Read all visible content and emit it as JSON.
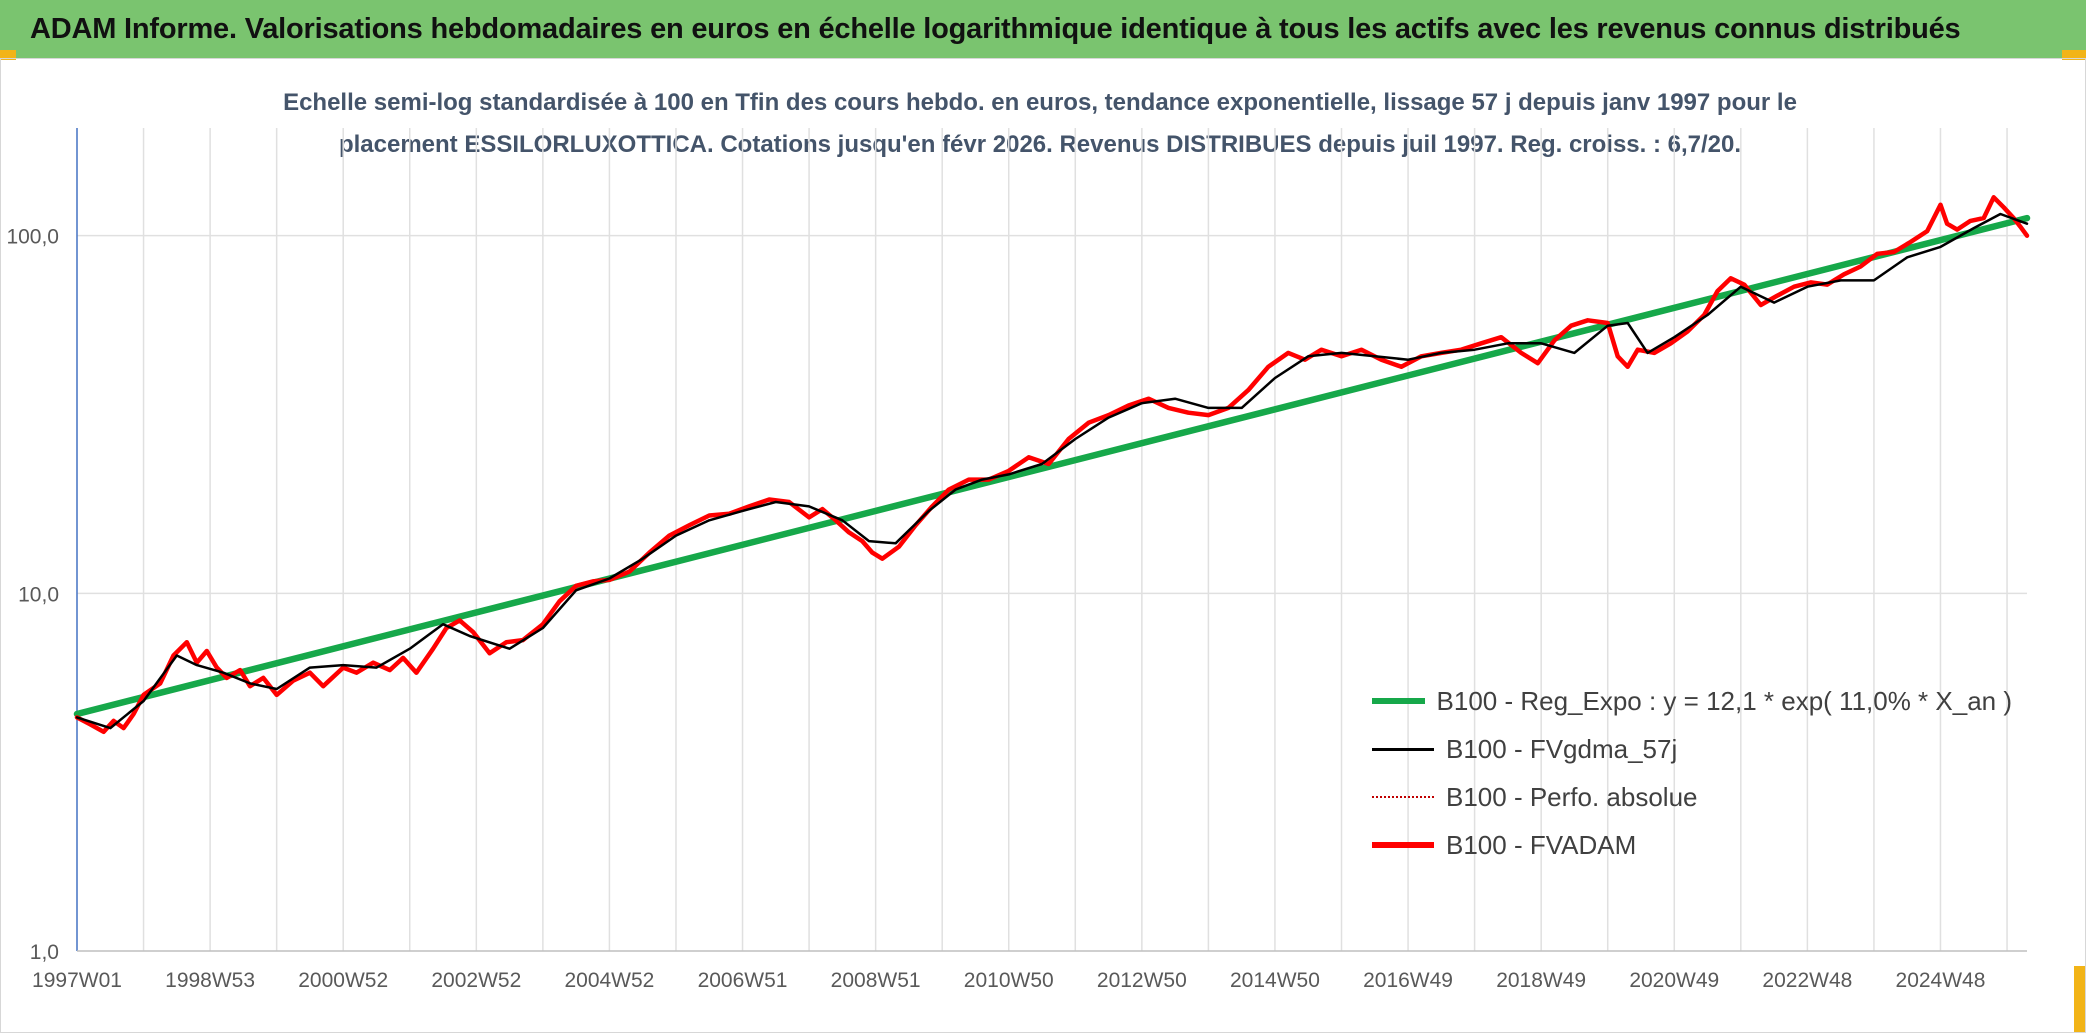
{
  "banner": {
    "title": "ADAM Informe. Valorisations hebdomadaires en euros en échelle logarithmique identique à tous les actifs avec les revenus connus distribués"
  },
  "colors": {
    "banner_bg": "#7ac46f",
    "corner_accent": "#f2b417",
    "trend": "#16a84a",
    "smoothed": "#000000",
    "perf": "#c00000",
    "fvadam": "#ff0000",
    "axis": "#4472c4",
    "grid": "#e0e0e0"
  },
  "chart_data": {
    "type": "line",
    "title_line1": "Echelle semi-log standardisée à 100 en Tfin des cours hebdo. en euros, tendance exponentielle, lissage 57 j depuis janv 1997 pour le",
    "title_line2": "placement ESSILORLUXOTTICA. Cotations jusqu'en févr 2026. Revenus DISTRIBUES depuis juil 1997. Reg. croiss. : 6,7/20.",
    "y_scale": "log",
    "ylim": [
      1,
      200
    ],
    "xlim": [
      1997.0,
      2026.3
    ],
    "y_ticks": [
      1,
      10,
      100
    ],
    "y_tick_labels": [
      "1,0",
      "10,0",
      "100,0"
    ],
    "x_tick_labels": [
      "1997W01",
      "1998W53",
      "2000W52",
      "2002W52",
      "2004W52",
      "2006W51",
      "2008W51",
      "2010W50",
      "2012W50",
      "2014W50",
      "2016W49",
      "2018W49",
      "2020W49",
      "2022W48",
      "2024W48"
    ],
    "x_tick_positions": [
      1997.0,
      1999.0,
      2001.0,
      2003.0,
      2005.0,
      2007.0,
      2009.0,
      2011.0,
      2013.0,
      2015.0,
      2017.0,
      2019.0,
      2021.0,
      2023.0,
      2025.0
    ],
    "grid": true,
    "legend_position": "bottom-right",
    "series": [
      {
        "name": "B100 - Reg_Expo : y = 12,1 * exp( 11,0% *  X_an )",
        "style": "trend",
        "x": [
          1997.0,
          2026.3
        ],
        "values": [
          4.6,
          112
        ]
      },
      {
        "name": "B100 - FVgdma_57j",
        "style": "smoothed",
        "x": [
          1997.0,
          1997.5,
          1998.0,
          1998.5,
          1998.8,
          1999.2,
          1999.6,
          2000.0,
          2000.5,
          2001.0,
          2001.5,
          2002.0,
          2002.5,
          2002.9,
          2003.5,
          2004.0,
          2004.5,
          2005.0,
          2005.5,
          2006.0,
          2006.5,
          2007.0,
          2007.5,
          2008.0,
          2008.5,
          2008.9,
          2009.3,
          2009.8,
          2010.2,
          2010.6,
          2011.0,
          2011.5,
          2012.0,
          2012.5,
          2013.0,
          2013.5,
          2014.0,
          2014.5,
          2015.0,
          2015.5,
          2016.0,
          2016.5,
          2017.0,
          2017.5,
          2018.0,
          2018.5,
          2019.0,
          2019.5,
          2020.0,
          2020.3,
          2020.6,
          2021.0,
          2021.5,
          2022.0,
          2022.5,
          2023.0,
          2023.5,
          2024.0,
          2024.5,
          2025.0,
          2025.5,
          2025.9,
          2026.3
        ],
        "values": [
          4.5,
          4.2,
          5.0,
          6.7,
          6.3,
          6.0,
          5.6,
          5.4,
          6.2,
          6.3,
          6.2,
          7.0,
          8.2,
          7.6,
          7.0,
          8.0,
          10.2,
          11.0,
          12.5,
          14.5,
          16.0,
          17.0,
          18.0,
          17.5,
          16.0,
          14.0,
          13.8,
          17.0,
          19.5,
          20.8,
          21.5,
          23.0,
          27.0,
          31.0,
          34.0,
          35.0,
          33.0,
          33.0,
          40.0,
          46.0,
          47.0,
          46.0,
          45.0,
          47.0,
          48.0,
          50.0,
          50.0,
          47.0,
          56.0,
          57.0,
          47.0,
          52.0,
          60.0,
          72.0,
          65.0,
          72.0,
          75.0,
          75.0,
          87.0,
          93.0,
          105.0,
          115.0,
          108.0
        ]
      },
      {
        "name": "B100 - Perfo. absolue",
        "style": "perf",
        "x": [],
        "values": []
      },
      {
        "name": "B100 - FVADAM",
        "style": "fvadam",
        "x": [
          1997.0,
          1997.2,
          1997.4,
          1997.55,
          1997.7,
          1997.85,
          1998.0,
          1998.25,
          1998.45,
          1998.65,
          1998.8,
          1998.95,
          1999.1,
          1999.25,
          1999.45,
          1999.6,
          1999.8,
          2000.0,
          2000.25,
          2000.5,
          2000.7,
          2001.0,
          2001.2,
          2001.45,
          2001.7,
          2001.9,
          2002.1,
          2002.35,
          2002.55,
          2002.75,
          2002.95,
          2003.2,
          2003.45,
          2003.7,
          2004.0,
          2004.25,
          2004.5,
          2004.75,
          2005.0,
          2005.3,
          2005.6,
          2005.9,
          2006.2,
          2006.5,
          2006.8,
          2007.1,
          2007.4,
          2007.7,
          2008.0,
          2008.2,
          2008.4,
          2008.6,
          2008.8,
          2008.95,
          2009.1,
          2009.35,
          2009.6,
          2009.85,
          2010.1,
          2010.4,
          2010.7,
          2011.0,
          2011.3,
          2011.6,
          2011.9,
          2012.2,
          2012.5,
          2012.8,
          2013.1,
          2013.4,
          2013.7,
          2014.0,
          2014.3,
          2014.6,
          2014.9,
          2015.2,
          2015.45,
          2015.7,
          2016.0,
          2016.3,
          2016.6,
          2016.9,
          2017.2,
          2017.5,
          2017.8,
          2018.1,
          2018.4,
          2018.7,
          2018.95,
          2019.2,
          2019.45,
          2019.7,
          2020.0,
          2020.15,
          2020.3,
          2020.45,
          2020.7,
          2020.95,
          2021.2,
          2021.45,
          2021.65,
          2021.85,
          2022.05,
          2022.3,
          2022.55,
          2022.8,
          2023.05,
          2023.3,
          2023.55,
          2023.8,
          2024.05,
          2024.3,
          2024.55,
          2024.8,
          2025.0,
          2025.1,
          2025.25,
          2025.45,
          2025.65,
          2025.8,
          2025.95,
          2026.1,
          2026.2,
          2026.3
        ],
        "values": [
          4.5,
          4.3,
          4.1,
          4.4,
          4.2,
          4.6,
          5.2,
          5.6,
          6.7,
          7.3,
          6.4,
          6.9,
          6.2,
          5.8,
          6.1,
          5.5,
          5.8,
          5.2,
          5.7,
          6.0,
          5.5,
          6.2,
          6.0,
          6.4,
          6.1,
          6.6,
          6.0,
          7.0,
          8.0,
          8.4,
          7.8,
          6.8,
          7.3,
          7.4,
          8.2,
          9.5,
          10.5,
          10.8,
          10.9,
          11.5,
          13.0,
          14.5,
          15.5,
          16.5,
          16.7,
          17.5,
          18.3,
          18.0,
          16.3,
          17.2,
          16.0,
          14.8,
          14.0,
          13.0,
          12.5,
          13.5,
          15.5,
          17.5,
          19.5,
          20.8,
          20.8,
          22.0,
          24.0,
          23.0,
          27.0,
          30.0,
          31.5,
          33.5,
          35.0,
          33.0,
          32.0,
          31.5,
          33.0,
          37.0,
          43.0,
          47.0,
          45.0,
          48.0,
          46.0,
          48.0,
          45.0,
          43.0,
          46.0,
          47.0,
          48.0,
          50.0,
          52.0,
          47.0,
          44.0,
          51.0,
          56.0,
          58.0,
          57.0,
          46.0,
          43.0,
          48.0,
          47.0,
          50.0,
          54.0,
          60.0,
          70.0,
          76.0,
          73.0,
          64.0,
          68.0,
          72.0,
          74.0,
          73.0,
          78.0,
          82.0,
          89.0,
          90.0,
          96.0,
          103.0,
          122.0,
          108.0,
          104.0,
          110.0,
          112.0,
          128.0,
          120.0,
          112.0,
          106.0,
          100.0
        ]
      }
    ]
  }
}
